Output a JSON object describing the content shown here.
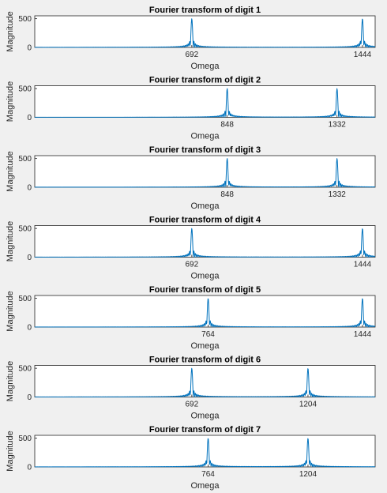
{
  "colors": {
    "background": "#f0f0f0",
    "axes": "#ffffff",
    "line": "#0072bd",
    "text": "#262626"
  },
  "chart_data": [
    {
      "type": "line",
      "title": "Fourier transform of digit 1",
      "xlabel": "Omega",
      "ylabel": "Magnitude",
      "xlim": [
        0,
        1500
      ],
      "ylim": [
        0,
        550
      ],
      "xticks": [
        692,
        1444
      ],
      "yticks": [
        0,
        500
      ],
      "peaks": [
        {
          "x": 692,
          "y": 500
        },
        {
          "x": 1444,
          "y": 500
        }
      ]
    },
    {
      "type": "line",
      "title": "Fourier transform of digit 2",
      "xlabel": "Omega",
      "ylabel": "Magnitude",
      "xlim": [
        0,
        1500
      ],
      "ylim": [
        0,
        550
      ],
      "xticks": [
        848,
        1332
      ],
      "yticks": [
        0,
        500
      ],
      "peaks": [
        {
          "x": 848,
          "y": 500
        },
        {
          "x": 1332,
          "y": 500
        }
      ]
    },
    {
      "type": "line",
      "title": "Fourier transform of digit 3",
      "xlabel": "Omega",
      "ylabel": "Magnitude",
      "xlim": [
        0,
        1500
      ],
      "ylim": [
        0,
        550
      ],
      "xticks": [
        848,
        1332
      ],
      "yticks": [
        0,
        500
      ],
      "peaks": [
        {
          "x": 848,
          "y": 500
        },
        {
          "x": 1332,
          "y": 500
        }
      ]
    },
    {
      "type": "line",
      "title": "Fourier transform of digit 4",
      "xlabel": "Omega",
      "ylabel": "Magnitude",
      "xlim": [
        0,
        1500
      ],
      "ylim": [
        0,
        550
      ],
      "xticks": [
        692,
        1444
      ],
      "yticks": [
        0,
        500
      ],
      "peaks": [
        {
          "x": 692,
          "y": 500
        },
        {
          "x": 1444,
          "y": 500
        }
      ]
    },
    {
      "type": "line",
      "title": "Fourier transform of digit 5",
      "xlabel": "Omega",
      "ylabel": "Magnitude",
      "xlim": [
        0,
        1500
      ],
      "ylim": [
        0,
        550
      ],
      "xticks": [
        764,
        1444
      ],
      "yticks": [
        0,
        500
      ],
      "peaks": [
        {
          "x": 764,
          "y": 500
        },
        {
          "x": 1444,
          "y": 500
        }
      ]
    },
    {
      "type": "line",
      "title": "Fourier transform of digit 6",
      "xlabel": "Omega",
      "ylabel": "Magnitude",
      "xlim": [
        0,
        1500
      ],
      "ylim": [
        0,
        550
      ],
      "xticks": [
        692,
        1204
      ],
      "yticks": [
        0,
        500
      ],
      "peaks": [
        {
          "x": 692,
          "y": 500
        },
        {
          "x": 1204,
          "y": 500
        }
      ]
    },
    {
      "type": "line",
      "title": "Fourier transform of digit 7",
      "xlabel": "Omega",
      "ylabel": "Magnitude",
      "xlim": [
        0,
        1500
      ],
      "ylim": [
        0,
        550
      ],
      "xticks": [
        764,
        1204
      ],
      "yticks": [
        0,
        500
      ],
      "peaks": [
        {
          "x": 764,
          "y": 500
        },
        {
          "x": 1204,
          "y": 500
        }
      ]
    }
  ]
}
